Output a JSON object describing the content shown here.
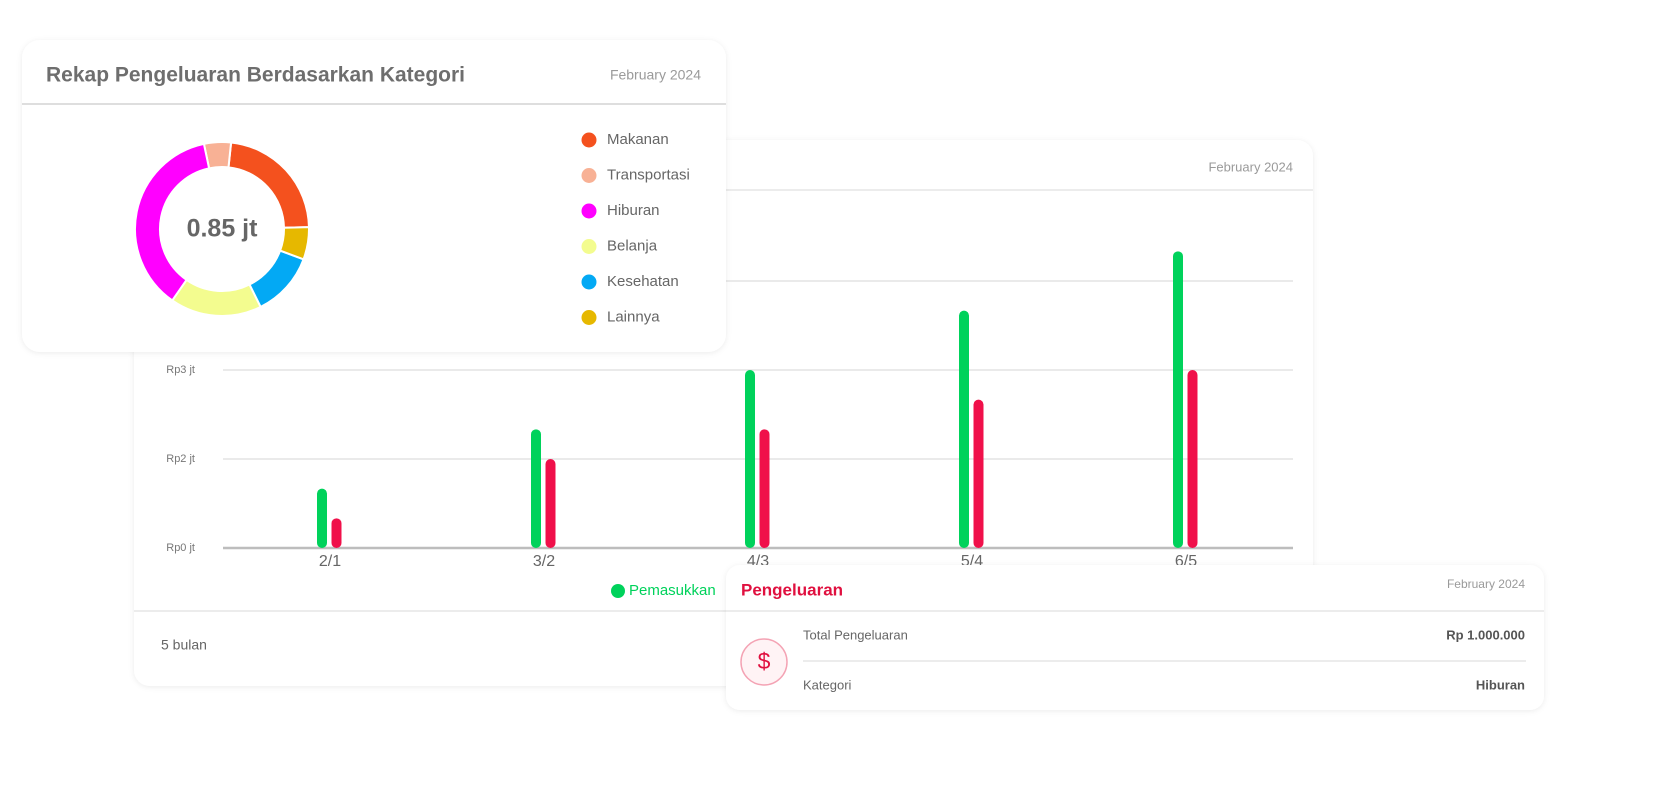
{
  "chart_data": [
    {
      "type": "pie",
      "title": "Rekap Pengeluaran Berdasarkan Kategori",
      "subtitle": "February 2024",
      "center_label": "0.85 jt",
      "categories": [
        "Makanan",
        "Transportasi",
        "Hiburan",
        "Belanja",
        "Kesehatan",
        "Lainnya"
      ],
      "values": [
        23,
        5,
        37,
        17,
        12,
        6
      ],
      "colors": [
        "#f4511e",
        "#f8b195",
        "#ff00ff",
        "#f3fc8f",
        "#03a9f4",
        "#e6b800"
      ]
    },
    {
      "type": "bar",
      "subtitle": "February 2024",
      "categories": [
        "2/1",
        "3/2",
        "4/3",
        "5/4",
        "6/5"
      ],
      "series": [
        {
          "name": "Pemasukkan",
          "color": "#00d25b",
          "values": [
            1,
            2,
            3,
            4,
            5
          ]
        },
        {
          "color": "#f0104a",
          "values": [
            0.5,
            1.5,
            2,
            2.5,
            3
          ]
        }
      ],
      "ylim": [
        0,
        6
      ],
      "yticks": [
        {
          "value": 0,
          "label": "Rp0 jt"
        },
        {
          "value": 1.5,
          "label": "Rp2 jt"
        },
        {
          "value": 3,
          "label": "Rp3 jt"
        },
        4.5
      ],
      "grid": true,
      "legend": "bottom"
    }
  ],
  "bar_footer": "5 bulan",
  "detail_card": {
    "title": "Pengeluaran",
    "date": "February 2024",
    "icon": "$",
    "rows": [
      {
        "label": "Total Pengeluaran",
        "value": "Rp 1.000.000"
      },
      {
        "label": "Kategori",
        "value": "Hiburan"
      }
    ]
  }
}
